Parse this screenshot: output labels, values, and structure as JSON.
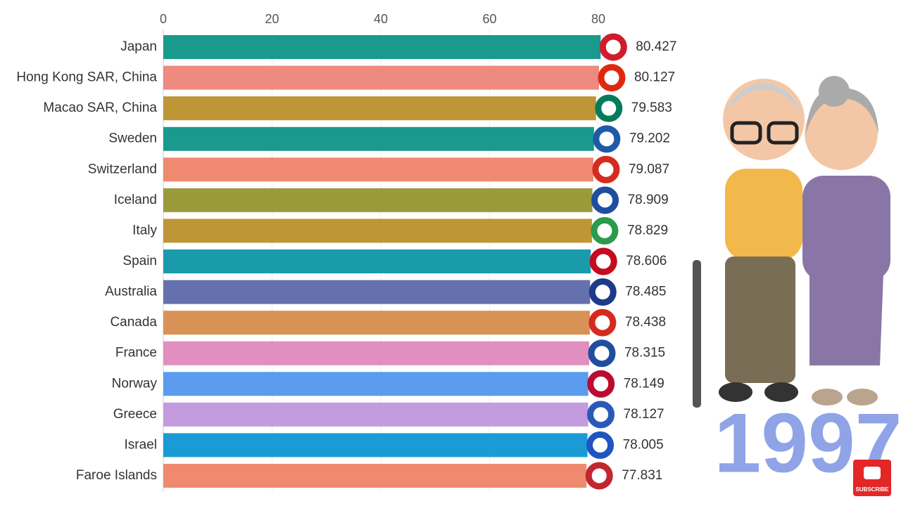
{
  "chart_data": {
    "type": "bar",
    "orientation": "horizontal",
    "categories": [
      "Japan",
      "Hong Kong SAR, China",
      "Macao SAR, China",
      "Sweden",
      "Switzerland",
      "Iceland",
      "Italy",
      "Spain",
      "Australia",
      "Canada",
      "France",
      "Norway",
      "Greece",
      "Israel",
      "Faroe Islands"
    ],
    "values": [
      80.427,
      80.127,
      79.583,
      79.202,
      79.087,
      78.909,
      78.829,
      78.606,
      78.485,
      78.438,
      78.315,
      78.149,
      78.127,
      78.005,
      77.831
    ],
    "colors": [
      "#1a9a8e",
      "#ef8a80",
      "#bf9636",
      "#1a9a8e",
      "#ef8a70",
      "#9a9a3a",
      "#bf9636",
      "#1a9bab",
      "#6670ae",
      "#d99255",
      "#e08fc0",
      "#5b9cef",
      "#c49bde",
      "#1a9bd6",
      "#ef8a70"
    ],
    "xlim": [
      0,
      80
    ],
    "xticks": [
      0,
      20,
      40,
      60,
      80
    ],
    "grid": true,
    "annotation": "1997",
    "button": "SUBSCRIBE"
  }
}
